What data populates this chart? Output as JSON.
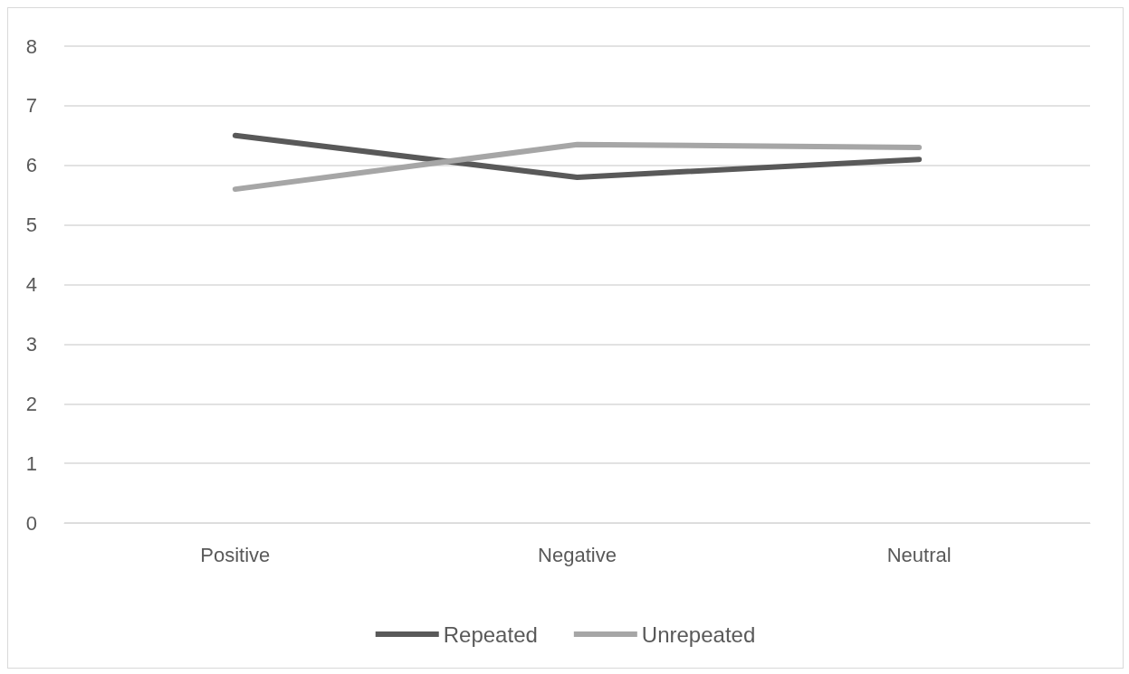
{
  "chart_data": {
    "type": "line",
    "categories": [
      "Positive",
      "Negative",
      "Neutral"
    ],
    "series": [
      {
        "name": "Repeated",
        "color": "#595959",
        "values": [
          6.5,
          5.8,
          6.1
        ]
      },
      {
        "name": "Unrepeated",
        "color": "#a6a6a6",
        "values": [
          5.6,
          6.35,
          6.3
        ]
      }
    ],
    "ylim": [
      0,
      8
    ],
    "yticks": [
      0,
      1,
      2,
      3,
      4,
      5,
      6,
      7,
      8
    ],
    "grid": "y",
    "legend": "bottom",
    "marker": "none",
    "line_style": "solid"
  }
}
